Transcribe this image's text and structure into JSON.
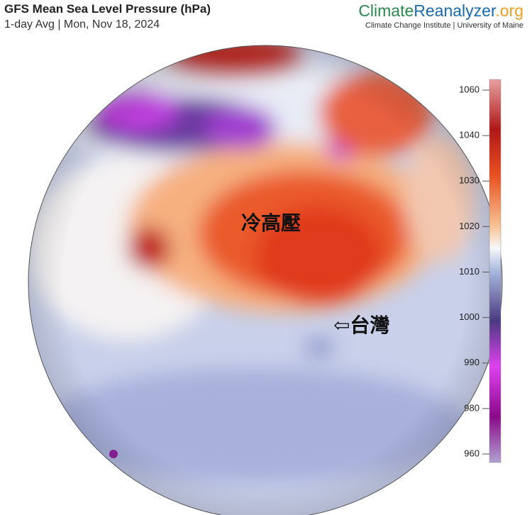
{
  "header": {
    "title": "GFS Mean Sea Level Pressure (hPa)",
    "subtitle": "1-day Avg | Mon, Nov 18, 2024"
  },
  "brand": {
    "name": [
      "Climate",
      "Reanalyzer",
      ".org"
    ],
    "institute": "Climate Change Institute | University of Maine"
  },
  "map": {
    "annotations": [
      "冷高壓",
      "⇦台灣"
    ]
  },
  "colorbar": {
    "ticks": [
      1060,
      1040,
      1030,
      1020,
      1010,
      1000,
      990,
      980,
      960
    ]
  }
}
